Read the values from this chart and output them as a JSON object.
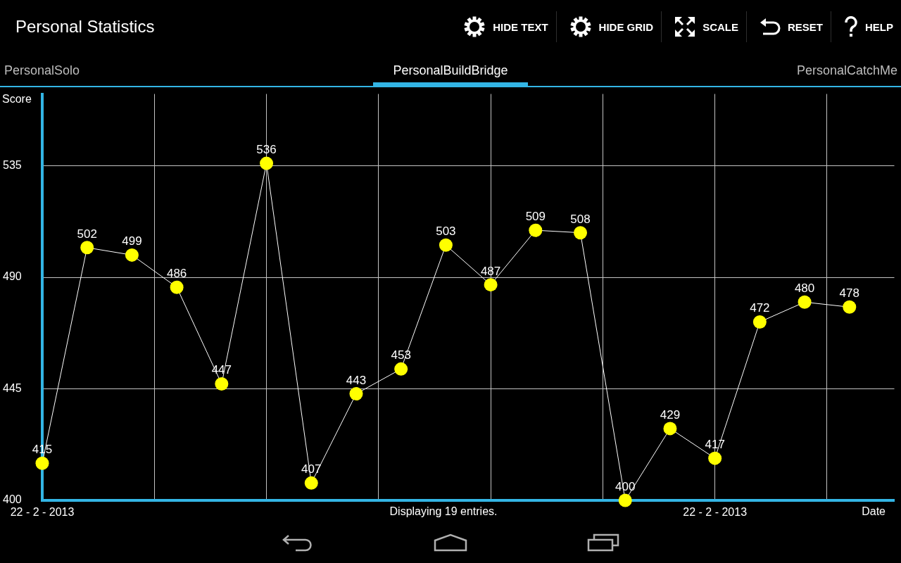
{
  "chart_data": {
    "type": "line",
    "title": "Personal Statistics",
    "subtitle": "PersonalBuildBridge",
    "xlabel": "Date",
    "ylabel": "Score",
    "categories": [
      "22 - 2 - 2013",
      null,
      null,
      null,
      null,
      null,
      null,
      null,
      null,
      null,
      null,
      null,
      null,
      null,
      null,
      "22 - 2 - 2013",
      null,
      null,
      null
    ],
    "series": [
      {
        "color": "#ffff00",
        "values": [
          415,
          502,
          499,
          486,
          447,
          536,
          407,
          443,
          453,
          503,
          487,
          509,
          508,
          400,
          429,
          417,
          472,
          480,
          478
        ]
      }
    ],
    "ylim": [
      400,
      564
    ],
    "yticks": [
      400,
      445,
      490,
      535
    ],
    "grid": true,
    "marker": "circle",
    "line_style": "solid",
    "data_labels": true,
    "annotations": [
      "HIDE TEXT",
      "HIDE GRID",
      "SCALE",
      "RESET",
      "HELP",
      "PersonalSolo",
      "PersonalCatchMe",
      "Displaying 19 entries."
    ]
  }
}
